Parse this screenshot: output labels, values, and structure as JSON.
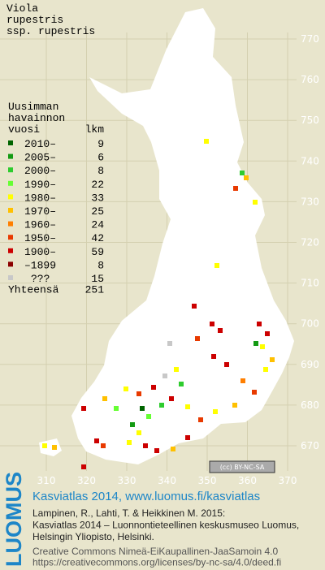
{
  "title": [
    "Viola",
    "rupestris",
    "ssp. rupestris"
  ],
  "legend": {
    "heading": [
      "Uusimman",
      "havainnon"
    ],
    "col_year": "vuosi",
    "col_count": "lkm",
    "rows": [
      {
        "label": "2010–",
        "count": 9,
        "color": "#006400"
      },
      {
        "label": "2005–",
        "count": 6,
        "color": "#139a13"
      },
      {
        "label": "2000–",
        "count": 8,
        "color": "#2ecc2e"
      },
      {
        "label": "1990–",
        "count": 22,
        "color": "#66ff33"
      },
      {
        "label": "1980–",
        "count": 33,
        "color": "#ffff00"
      },
      {
        "label": "1970–",
        "count": 25,
        "color": "#ffc000"
      },
      {
        "label": "1960–",
        "count": 24,
        "color": "#ff7f00"
      },
      {
        "label": "1950–",
        "count": 42,
        "color": "#e83a00"
      },
      {
        "label": "1900–",
        "count": 59,
        "color": "#cc0000"
      },
      {
        "label": "–1899",
        "count": 8,
        "color": "#8b0000"
      },
      {
        "label": "???",
        "count": 15,
        "color": "#c8c8c8"
      }
    ],
    "total_label": "Yhteensä",
    "total": 251
  },
  "grid": {
    "y_labels": [
      770,
      760,
      750,
      740,
      730,
      720,
      710,
      700,
      690,
      680,
      670
    ],
    "x_labels": [
      310,
      320,
      330,
      340,
      350,
      360,
      370
    ]
  },
  "license_badge": "(cc) BY-NC-SA",
  "footer": {
    "logo": "LUOMUS",
    "heading": "Kasviatlas 2014, www.luomus.fi/kasviatlas",
    "citation": [
      "Lampinen, R., Lahti, T. & Heikkinen M. 2015:",
      "Kasviatlas 2014 – Luonnontieteellinen keskusmuseo Luomus,",
      "Helsingin Yliopisto, Helsinki."
    ],
    "license": [
      "Creative Commons Nimeä-EiKaupallinen-JaaSamoin 4.0",
      "https://creativecommons.org/licenses/by-nc-sa/4.0/deed.fi"
    ]
  }
}
